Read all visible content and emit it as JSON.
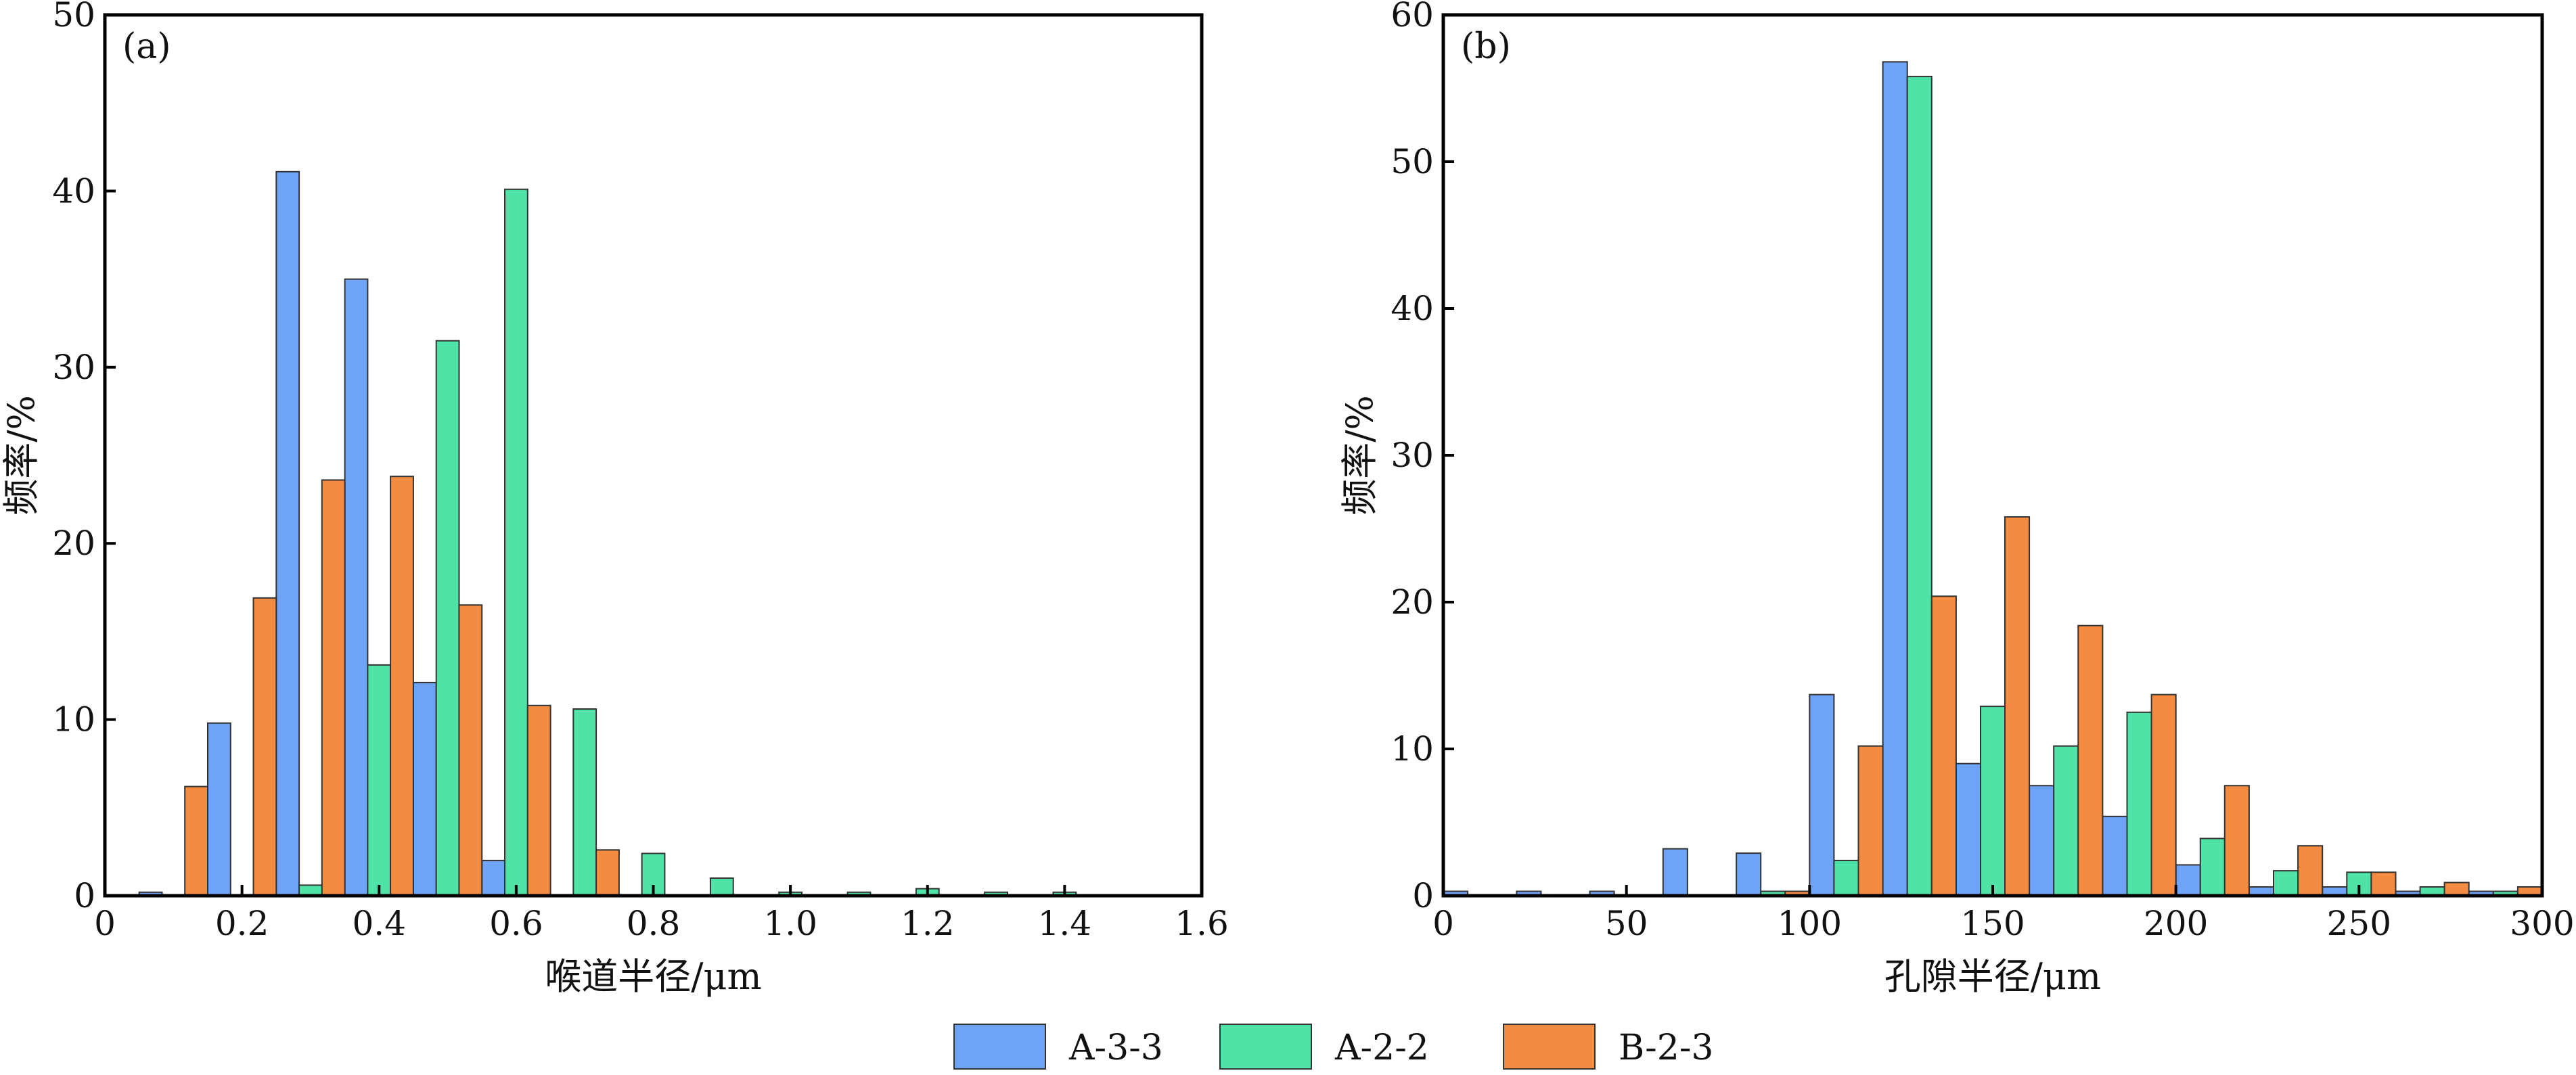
{
  "chart_data": [
    {
      "type": "bar",
      "panel_label": "(a)",
      "xlabel": "喉道半径/μm",
      "ylabel": "频率/%",
      "xlim": [
        0,
        1.6
      ],
      "ylim": [
        0,
        50
      ],
      "x_ticks": [
        "0",
        "0.2",
        "0.4",
        "0.6",
        "0.8",
        "1.0",
        "1.2",
        "1.4",
        "1.6"
      ],
      "y_ticks": [
        "0",
        "10",
        "20",
        "30",
        "40",
        "50"
      ],
      "categories": [
        "0.1",
        "0.2",
        "0.3",
        "0.4",
        "0.5",
        "0.6",
        "0.7",
        "0.8",
        "0.9",
        "1.0",
        "1.1",
        "1.2",
        "1.3",
        "1.4",
        "1.5"
      ],
      "series": [
        {
          "name": "A-3-3",
          "values": [
            0.2,
            9.8,
            41.1,
            35.0,
            12.1,
            2.0,
            0,
            0,
            0,
            0,
            0,
            0,
            0,
            0,
            0
          ]
        },
        {
          "name": "A-2-2",
          "values": [
            0,
            0,
            0.6,
            13.1,
            31.5,
            40.1,
            10.6,
            2.4,
            1.0,
            0.2,
            0.2,
            0.4,
            0.2,
            0.2,
            0
          ]
        },
        {
          "name": "B-2-3",
          "values": [
            6.2,
            16.9,
            23.6,
            23.8,
            16.5,
            10.8,
            2.6,
            0,
            0,
            0,
            0,
            0,
            0,
            0,
            0
          ]
        }
      ],
      "grid": false,
      "legend": "bottom-center"
    },
    {
      "type": "bar",
      "panel_label": "(b)",
      "xlabel": "孔隙半径/μm",
      "ylabel": "频率/%",
      "xlim": [
        0,
        300
      ],
      "ylim": [
        0,
        60
      ],
      "x_ticks": [
        "0",
        "50",
        "100",
        "150",
        "200",
        "250",
        "300"
      ],
      "y_ticks": [
        "0",
        "10",
        "20",
        "30",
        "40",
        "50",
        "60"
      ],
      "categories": [
        "10",
        "30",
        "50",
        "70",
        "90",
        "110",
        "130",
        "150",
        "170",
        "190",
        "210",
        "230",
        "250",
        "270",
        "290"
      ],
      "series": [
        {
          "name": "A-3-3",
          "values": [
            0.3,
            0.3,
            0.3,
            3.2,
            2.9,
            13.7,
            56.8,
            9.0,
            7.5,
            5.4,
            2.1,
            0.6,
            0.6,
            0.3,
            0.3
          ]
        },
        {
          "name": "A-2-2",
          "values": [
            0,
            0,
            0,
            0,
            0.3,
            2.4,
            55.8,
            12.9,
            10.2,
            12.5,
            3.9,
            1.7,
            1.6,
            0.6,
            0.3
          ]
        },
        {
          "name": "B-2-3",
          "values": [
            0,
            0,
            0,
            0,
            0.3,
            10.2,
            20.4,
            25.8,
            18.4,
            13.7,
            7.5,
            3.4,
            1.6,
            0.9,
            0.6
          ]
        }
      ],
      "grid": false,
      "legend": "bottom-center"
    }
  ],
  "legend": {
    "items": [
      {
        "name": "A-3-3",
        "color": "#6fa3f5"
      },
      {
        "name": "A-2-2",
        "color": "#4fe3a8"
      },
      {
        "name": "B-2-3",
        "color": "#f38b40"
      }
    ]
  },
  "colors": {
    "A-3-3": "#6fa3f5",
    "A-2-2": "#4fe3a8",
    "B-2-3": "#f38b40"
  }
}
